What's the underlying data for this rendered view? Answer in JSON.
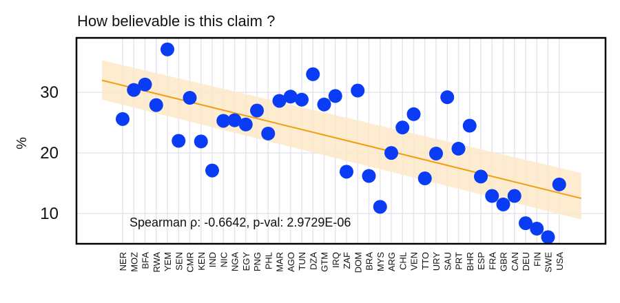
{
  "chart_data": {
    "type": "scatter",
    "title": "How believable is this claim ?",
    "xlabel": "",
    "ylabel": "%",
    "categories": [
      "NER",
      "MOZ",
      "BFA",
      "RWA",
      "YEM",
      "SEN",
      "CMR",
      "KEN",
      "IND",
      "NIC",
      "NGA",
      "EGY",
      "PNG",
      "PHL",
      "MAR",
      "AGO",
      "TUN",
      "DZA",
      "GTM",
      "IRQ",
      "ZAF",
      "DOM",
      "BRA",
      "MYS",
      "ARG",
      "CHL",
      "VEN",
      "TTO",
      "URY",
      "SAU",
      "PRT",
      "BHR",
      "ESP",
      "FRA",
      "GBR",
      "CAN",
      "DEU",
      "FIN",
      "SWE",
      "USA"
    ],
    "values": [
      25.6,
      30.4,
      31.3,
      27.9,
      37.1,
      22.0,
      29.1,
      21.9,
      17.1,
      25.3,
      25.4,
      24.7,
      27.0,
      23.2,
      28.6,
      29.3,
      28.8,
      33.0,
      28.0,
      29.4,
      16.9,
      30.3,
      16.2,
      11.1,
      20.0,
      24.2,
      26.4,
      15.8,
      19.9,
      29.2,
      20.7,
      24.5,
      16.1,
      12.9,
      11.5,
      12.9,
      8.4,
      7.5,
      6.1,
      14.8
    ],
    "trend": {
      "start": 32.0,
      "end": 12.5
    },
    "confidence_band": {
      "start_lower": 28.8,
      "start_upper": 35.3,
      "end_lower": 9.0,
      "end_upper": 16.7
    },
    "ylim": [
      5,
      39
    ],
    "yticks": [
      10,
      20,
      30
    ],
    "grid": true,
    "annotation": "Spearman ρ: -0.6642, p-val: 2.9729E-06",
    "colors": {
      "points": "#0a3cf5",
      "trend": "#f39c12",
      "band": "#fde9c8",
      "grid": "#e5e5f0"
    }
  }
}
